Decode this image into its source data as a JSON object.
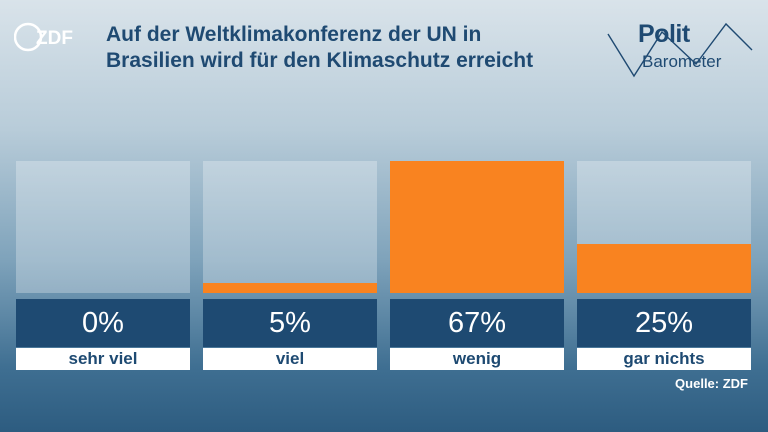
{
  "brand": {
    "zdf_logo": "ZDF",
    "politbarometer_top": "Polit",
    "politbarometer_bottom": "Barometer"
  },
  "title_lines": [
    "Auf der Weltklimakonferenz der UN in",
    "Brasilien wird für den Klimaschutz erreicht"
  ],
  "source": "Quelle: ZDF",
  "colors": {
    "bar_fill": "#f98320",
    "value_box": "#1e4a72",
    "title": "#1f4a72"
  },
  "chart_data": {
    "type": "bar",
    "categories": [
      "sehr viel",
      "viel",
      "wenig",
      "gar nichts"
    ],
    "values": [
      0,
      5,
      67,
      25
    ],
    "value_labels": [
      "0%",
      "5%",
      "67%",
      "25%"
    ],
    "ylim": [
      0,
      67
    ],
    "title": "Auf der Weltklimakonferenz der UN in Brasilien wird für den Klimaschutz erreicht",
    "xlabel": "",
    "ylabel": "",
    "unit": "%"
  }
}
